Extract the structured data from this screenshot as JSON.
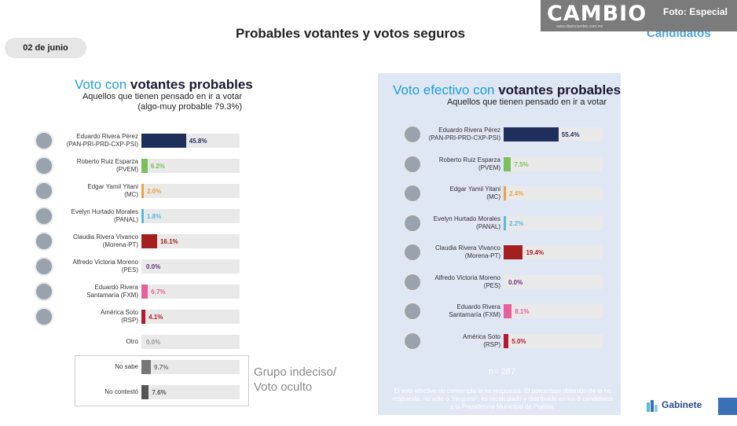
{
  "header": {
    "date": "02 de junio",
    "title": "Probables votantes y votos seguros",
    "candidatos": "Candidatos",
    "logo": "CAMBIO",
    "logo_sub": "www.diariocambio.com.mx",
    "foto": "Foto: Especial"
  },
  "chart_data": [
    {
      "type": "bar",
      "title_part1": "Voto con ",
      "title_part2": "votantes probables",
      "subtitle": "Aquellos que tienen pensado en ir a votar",
      "subtitle2": "(algo-muy probable 79.3%)",
      "categories": [
        "Eduardo Rivera Pérez (PAN-PRI-PRD-CXP-PSI)",
        "Roberto Ruiz Esparza (PVEM)",
        "Edgar Yamil Yitani (MC)",
        "Evelyn Hurtado Morales (PANAL)",
        "Claudia Rivera Vivanco (Morena-PT)",
        "Alfredo Victoria Moreno (PES)",
        "Eduardo Rivera Santamaría (FXM)",
        "América Soto (RSP)",
        "Otro",
        "No sabe",
        "No contestó"
      ],
      "label_lines": [
        [
          "Eduardo Rivera Pérez",
          "(PAN-PRI-PRD-CXP-PSI)"
        ],
        [
          "Roberto Ruiz Esparza",
          "(PVEM)"
        ],
        [
          "Edgar Yamil Yitani",
          "(MC)"
        ],
        [
          "Evelyn Hurtado Morales",
          "(PANAL)"
        ],
        [
          "Claudia Rivera Vivanco",
          "(Morena-PT)"
        ],
        [
          "Alfredo Victoria Moreno",
          "(PES)"
        ],
        [
          "Eduardo Rivera",
          "Santamaría (FXM)"
        ],
        [
          "América Soto",
          "(RSP)"
        ],
        [
          "Otro"
        ],
        [
          "No sabe"
        ],
        [
          "No contestó"
        ]
      ],
      "values": [
        45.8,
        6.2,
        2.0,
        1.8,
        16.1,
        0.0,
        6.7,
        4.1,
        0.0,
        9.7,
        7.6
      ],
      "value_labels": [
        "45.8%",
        "6.2%",
        "2.0%",
        "1.8%",
        "16.1%",
        "0.0%",
        "6.7%",
        "4.1%",
        "0.0%",
        "9.7%",
        "7.6%"
      ],
      "colors": [
        "#1f2f5c",
        "#7bc15a",
        "#f0a040",
        "#5bb8e0",
        "#a3201f",
        "#6a2f7a",
        "#e8609a",
        "#b51830",
        "#999999",
        "#777777",
        "#555555"
      ],
      "has_avatar": [
        true,
        true,
        true,
        true,
        true,
        true,
        true,
        true,
        false,
        false,
        false
      ],
      "group_label_1": "Grupo indeciso/",
      "group_label_2": "Voto oculto"
    },
    {
      "type": "bar",
      "title_part1": "Voto efectivo con ",
      "title_part2": "votantes probables",
      "subtitle": "Aquellos que tienen pensado en ir a votar",
      "categories": [
        "Eduardo Rivera Pérez (PAN-PRI-PRD-CXP-PSI)",
        "Roberto Ruiz Esparza (PVEM)",
        "Edgar Yamil Yitani (MC)",
        "Evelyn Hurtado Morales (PANAL)",
        "Claudia Rivera Vivanco (Morena-PT)",
        "Alfredo Victoria Moreno (PES)",
        "Eduardo Rivera Santamaría (FXM)",
        "América Soto (RSP)"
      ],
      "label_lines": [
        [
          "Eduardo Rivera Pérez",
          "(PAN-PRI-PRD-CXP-PSI)"
        ],
        [
          "Roberto Ruiz Esparza",
          "(PVEM)"
        ],
        [
          "Edgar Yamil Yitani",
          "(MC)"
        ],
        [
          "Evelyn Hurtado Morales",
          "(PANAL)"
        ],
        [
          "Claudia Rivera Vivanco",
          "(Morena-PT)"
        ],
        [
          "Alfredo Victoria Moreno",
          "(PES)"
        ],
        [
          "Eduardo Rivera",
          "Santamaría (FXM)"
        ],
        [
          "América Soto",
          "(RSP)"
        ]
      ],
      "values": [
        55.4,
        7.5,
        2.4,
        2.2,
        19.4,
        0.0,
        8.1,
        5.0
      ],
      "value_labels": [
        "55.4%",
        "7.5%",
        "2.4%",
        "2.2%",
        "19.4%",
        "0.0%",
        "8.1%",
        "5.0%"
      ],
      "colors": [
        "#1f2f5c",
        "#7bc15a",
        "#f0a040",
        "#5bb8e0",
        "#a3201f",
        "#6a2f7a",
        "#e8609a",
        "#b51830"
      ],
      "n_label": "n= 287",
      "footnote": "El voto efectivo no contempla la no respuesta. El porcentaje obtenido de la no respuesta, no voto o \"ninguno\", es recalculado y distribuido en los 8 candidatos a la Presidencia Municipal de Puebla."
    }
  ],
  "footer": {
    "brand": "Gabinete"
  }
}
